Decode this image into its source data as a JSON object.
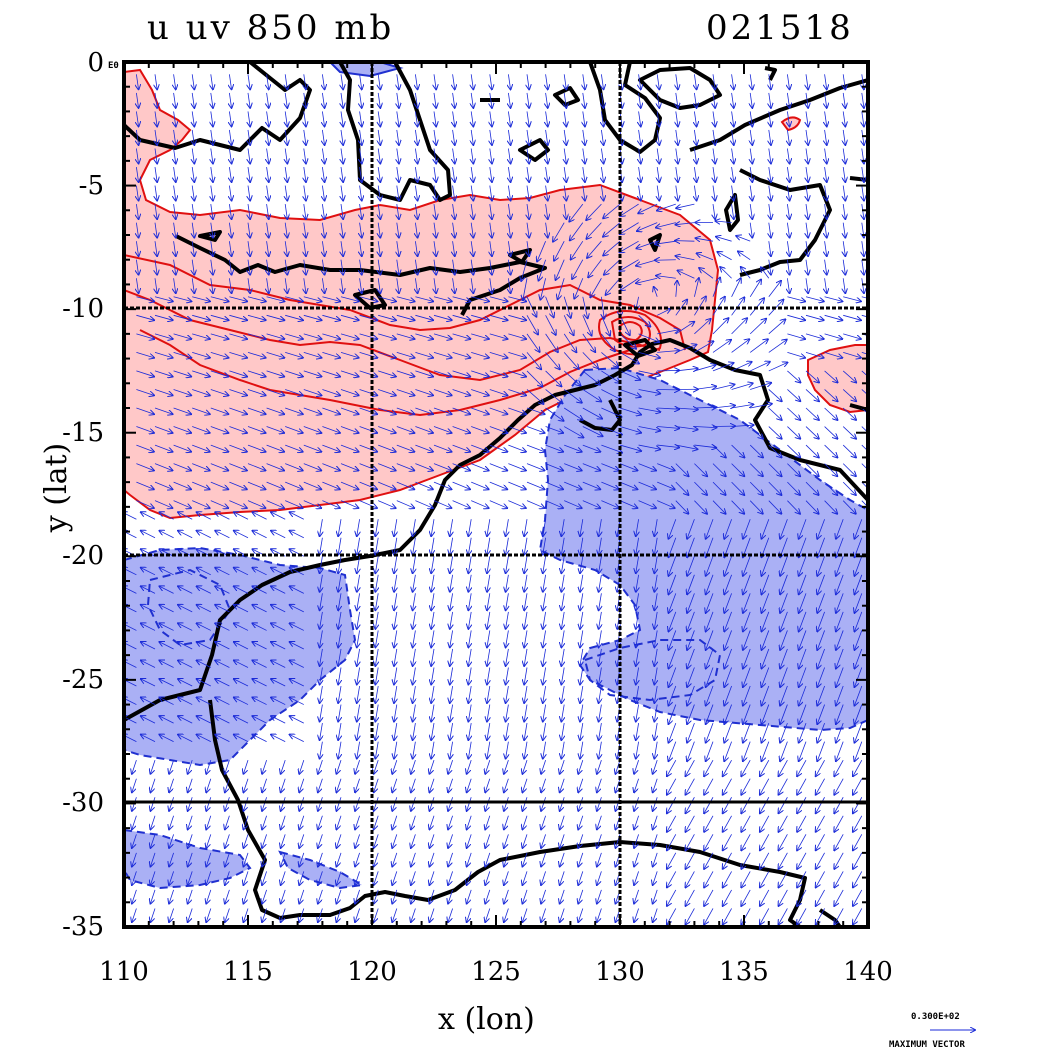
{
  "title_left": "u uv 850 mb",
  "title_right": "021518",
  "map": {
    "xlabel": "x (lon)",
    "ylabel": "y (lat)",
    "x_ticks": [
      "110",
      "115",
      "120",
      "125",
      "130",
      "135",
      "140"
    ],
    "y_ticks": [
      "0",
      "-5",
      "-10",
      "-15",
      "-20",
      "-25",
      "-30",
      "-35"
    ],
    "y_corner_label": "E0",
    "lon_range": [
      110,
      140
    ],
    "lat_range": [
      -35,
      0
    ],
    "grid_lon": [
      120,
      130
    ],
    "grid_lat": [
      -10,
      -20,
      -30
    ],
    "colors": {
      "positive_fill": "#ffc8c8",
      "positive_line": "#e01010",
      "negative_fill": "#aab0f5",
      "negative_line": "#2030d0",
      "vector": "#1a2ad8",
      "coast": "#000000"
    }
  },
  "legend": {
    "vector_value": "0.300E+02",
    "vector_label": "MAXIMUM VECTOR"
  }
}
